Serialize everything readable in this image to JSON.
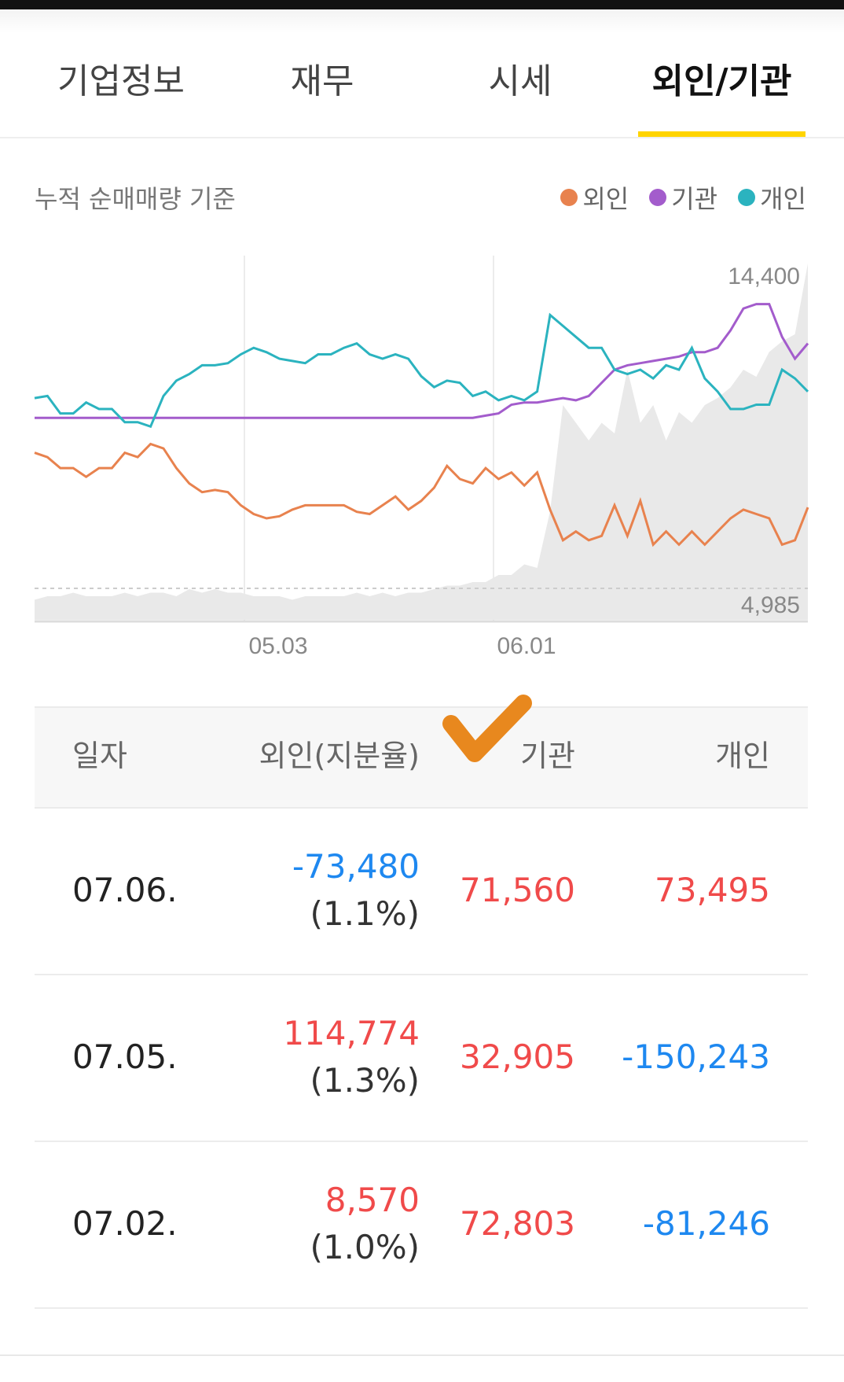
{
  "tabs": [
    {
      "label": "기업정보",
      "active": false
    },
    {
      "label": "재무",
      "active": false
    },
    {
      "label": "시세",
      "active": false
    },
    {
      "label": "외인/기관",
      "active": true
    }
  ],
  "chart": {
    "caption": "누적 순매매량 기준",
    "legend": [
      {
        "label": "외인",
        "color": "#e8824e"
      },
      {
        "label": "기관",
        "color": "#a35ccc"
      },
      {
        "label": "개인",
        "color": "#2bb3bf"
      }
    ],
    "price_high_label": "14,400",
    "price_low_label": "4,985",
    "x_labels": [
      "05.03",
      "06.01"
    ]
  },
  "chart_data": {
    "type": "line",
    "x_tick_labels": [
      "05.03",
      "06.01"
    ],
    "series": [
      {
        "name": "외인",
        "color": "#e8824e",
        "values": [
          0.62,
          0.6,
          0.55,
          0.55,
          0.51,
          0.55,
          0.55,
          0.62,
          0.6,
          0.66,
          0.64,
          0.55,
          0.48,
          0.44,
          0.45,
          0.44,
          0.38,
          0.34,
          0.32,
          0.33,
          0.36,
          0.38,
          0.38,
          0.38,
          0.38,
          0.35,
          0.34,
          0.38,
          0.42,
          0.36,
          0.4,
          0.46,
          0.56,
          0.5,
          0.48,
          0.55,
          0.5,
          0.53,
          0.47,
          0.53,
          0.36,
          0.22,
          0.26,
          0.22,
          0.24,
          0.38,
          0.24,
          0.4,
          0.2,
          0.26,
          0.2,
          0.26,
          0.2,
          0.26,
          0.32,
          0.36,
          0.34,
          0.32,
          0.2,
          0.22,
          0.37
        ]
      },
      {
        "name": "기관",
        "color": "#a35ccc",
        "values": [
          0.78,
          0.78,
          0.78,
          0.78,
          0.78,
          0.78,
          0.78,
          0.78,
          0.78,
          0.78,
          0.78,
          0.78,
          0.78,
          0.78,
          0.78,
          0.78,
          0.78,
          0.78,
          0.78,
          0.78,
          0.78,
          0.78,
          0.78,
          0.78,
          0.78,
          0.78,
          0.78,
          0.78,
          0.78,
          0.78,
          0.78,
          0.78,
          0.78,
          0.78,
          0.78,
          0.79,
          0.8,
          0.84,
          0.85,
          0.85,
          0.86,
          0.87,
          0.86,
          0.88,
          0.94,
          1.0,
          1.02,
          1.03,
          1.04,
          1.05,
          1.06,
          1.08,
          1.08,
          1.1,
          1.18,
          1.28,
          1.3,
          1.3,
          1.15,
          1.05,
          1.12
        ]
      },
      {
        "name": "개인",
        "color": "#2bb3bf",
        "values": [
          0.87,
          0.88,
          0.8,
          0.8,
          0.85,
          0.82,
          0.82,
          0.76,
          0.76,
          0.74,
          0.88,
          0.95,
          0.98,
          1.02,
          1.02,
          1.03,
          1.07,
          1.1,
          1.08,
          1.05,
          1.04,
          1.03,
          1.07,
          1.07,
          1.1,
          1.12,
          1.07,
          1.05,
          1.07,
          1.05,
          0.97,
          0.92,
          0.95,
          0.94,
          0.88,
          0.9,
          0.86,
          0.88,
          0.86,
          0.9,
          1.25,
          1.2,
          1.15,
          1.1,
          1.1,
          1.0,
          0.98,
          1.0,
          0.96,
          1.02,
          1.0,
          1.1,
          0.96,
          0.9,
          0.82,
          0.82,
          0.84,
          0.84,
          1.0,
          0.96,
          0.9
        ]
      },
      {
        "name": "가격",
        "color": "#e9e9e9",
        "values": [
          0.05,
          0.06,
          0.06,
          0.07,
          0.06,
          0.06,
          0.06,
          0.07,
          0.06,
          0.07,
          0.07,
          0.06,
          0.08,
          0.07,
          0.08,
          0.07,
          0.07,
          0.06,
          0.06,
          0.06,
          0.05,
          0.06,
          0.06,
          0.06,
          0.06,
          0.07,
          0.06,
          0.07,
          0.06,
          0.07,
          0.07,
          0.08,
          0.09,
          0.09,
          0.1,
          0.1,
          0.12,
          0.12,
          0.15,
          0.14,
          0.3,
          0.6,
          0.55,
          0.5,
          0.55,
          0.52,
          0.7,
          0.55,
          0.6,
          0.5,
          0.58,
          0.55,
          0.6,
          0.62,
          0.65,
          0.7,
          0.68,
          0.75,
          0.78,
          0.8,
          1.0
        ]
      }
    ]
  },
  "table": {
    "headers": [
      "일자",
      "외인(지분율)",
      "기관",
      "개인"
    ],
    "rows": [
      {
        "date": "07.06.",
        "foreign": "-73,480",
        "foreign_sign": "neg",
        "foreign_pct": "(1.1%)",
        "inst": "71,560",
        "inst_sign": "pos",
        "indiv": "73,495",
        "indiv_sign": "pos"
      },
      {
        "date": "07.05.",
        "foreign": "114,774",
        "foreign_sign": "pos",
        "foreign_pct": "(1.3%)",
        "inst": "32,905",
        "inst_sign": "pos",
        "indiv": "-150,243",
        "indiv_sign": "neg"
      },
      {
        "date": "07.02.",
        "foreign": "8,570",
        "foreign_sign": "pos",
        "foreign_pct": "(1.0%)",
        "inst": "72,803",
        "inst_sign": "pos",
        "indiv": "-81,246",
        "indiv_sign": "neg"
      }
    ]
  },
  "annotation_color": "#e8881e"
}
